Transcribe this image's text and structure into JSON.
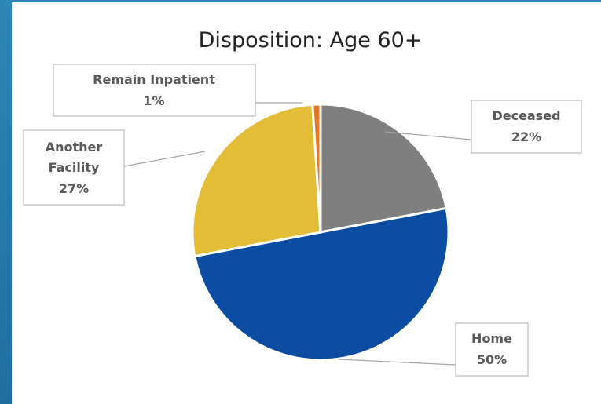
{
  "chart_data": {
    "type": "pie",
    "title": "Disposition: Age 60+",
    "slices": [
      {
        "name": "Deceased",
        "value": 22,
        "label": "22%",
        "color": "#7f7f7f"
      },
      {
        "name": "Home",
        "value": 50,
        "label": "50%",
        "color": "#0b4da2"
      },
      {
        "name": "Another Facility",
        "value": 27,
        "label": "27%",
        "color": "#e3bd35"
      },
      {
        "name": "Remain Inpatient",
        "value": 1,
        "label": "1%",
        "color": "#e07a22"
      }
    ],
    "start_angle": "12 o'clock",
    "direction": "clockwise",
    "legend": "none, data labels with leader lines"
  }
}
